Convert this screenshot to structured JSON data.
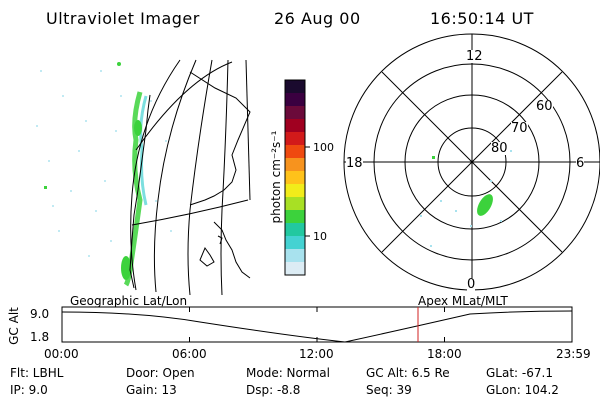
{
  "header": {
    "instrument": "Ultraviolet Imager",
    "date": "26 Aug 00",
    "time": "16:50:14 UT"
  },
  "colorbar": {
    "label": "photon cm⁻²s⁻¹",
    "tick_labels": [
      "100",
      "10"
    ],
    "colors": [
      "#1a0a2e",
      "#3a0040",
      "#6b0a3a",
      "#a00020",
      "#d21a1a",
      "#ef4a10",
      "#f7931e",
      "#ffc21a",
      "#f2ec1a",
      "#a8e024",
      "#3cd23c",
      "#22c8a0",
      "#44d2d2",
      "#a8e2ee",
      "#dcecf4"
    ]
  },
  "polar": {
    "hour_labels": [
      "12",
      "18",
      "6",
      "0"
    ],
    "lat_labels": [
      "60",
      "70",
      "80"
    ]
  },
  "timeline": {
    "left_title": "Geographic Lat/Lon",
    "right_title": "Apex MLat/MLT",
    "y_label": "GC Alt",
    "y_ticks": [
      "9.0",
      "1.8"
    ],
    "x_ticks": [
      "00:00",
      "06:00",
      "12:00",
      "18:00",
      "23:59"
    ],
    "marker_time": "16:50:14"
  },
  "footer": {
    "flt": "Flt:  LBHL",
    "ip": "IP:  9.0",
    "door": "Door:  Open",
    "gain": "Gain:  13",
    "mode": "Mode:  Normal",
    "dsp": "Dsp:     -8.8",
    "gcalt": "GC Alt:  6.5 Re",
    "seq": "Seq:  39",
    "glat": "GLat:  -67.1",
    "glon": "GLon:  104.2"
  },
  "accent": {
    "marker": "#d02020",
    "aurora": "#3cd23c"
  }
}
